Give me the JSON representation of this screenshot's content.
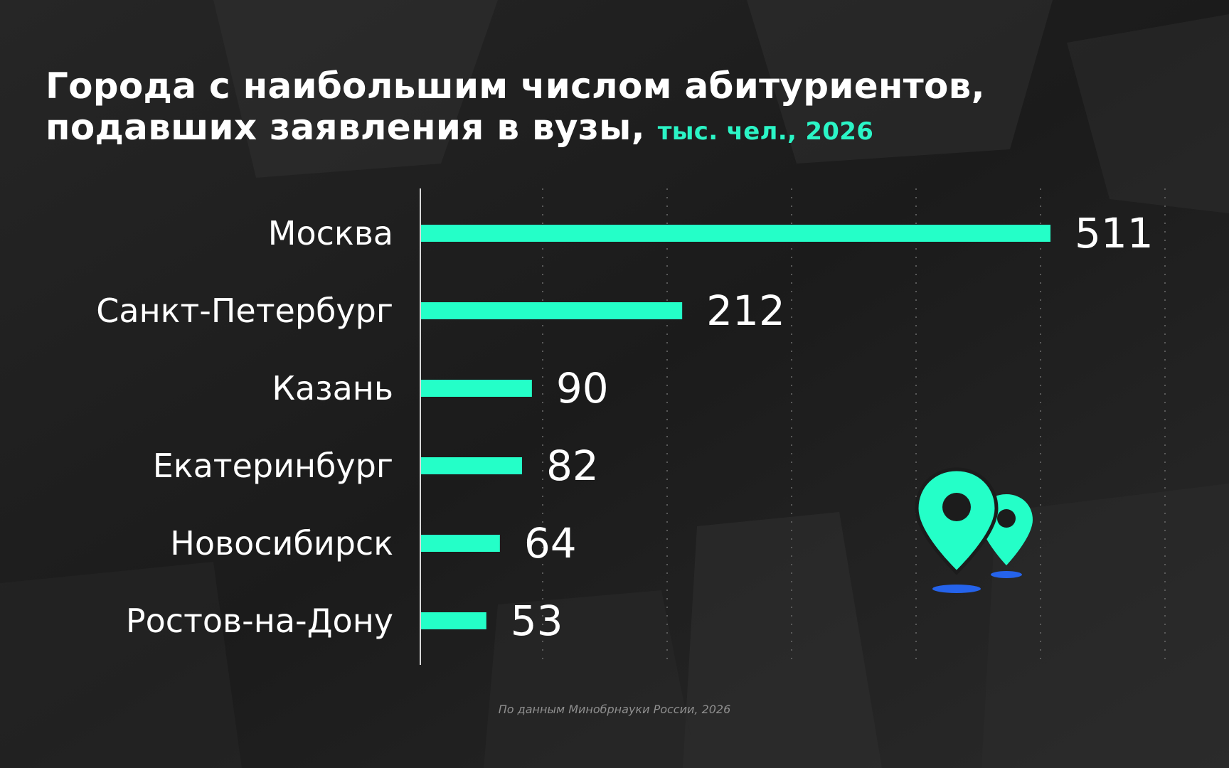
{
  "title": {
    "line1": "Города с наибольшим числом абитуриентов,",
    "line2": "подавших заявления в вузы,",
    "unit": "тыс. чел., 2026"
  },
  "source": "По данным Минобрнауки России, 2026",
  "icon": "location-pins-icon",
  "colors": {
    "bar": "#24ffc8",
    "accent": "#2bf5c6",
    "text": "#ffffff",
    "pin_shadow": "#2563eb"
  },
  "chart_data": {
    "type": "bar",
    "orientation": "horizontal",
    "categories": [
      "Москва",
      "Санкт-Петербург",
      "Казань",
      "Екатеринбург",
      "Новосибирск",
      "Ростов-на-Дону"
    ],
    "values": [
      511,
      212,
      90,
      82,
      64,
      53
    ],
    "data_labels": [
      "511",
      "212",
      "90",
      "82",
      "64",
      "53"
    ],
    "xlim": [
      0,
      600
    ],
    "grid": true
  }
}
